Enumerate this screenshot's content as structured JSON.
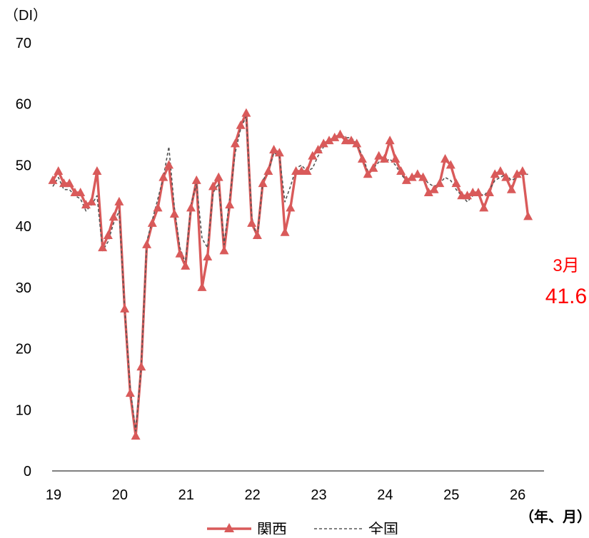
{
  "chart_data": {
    "type": "line",
    "y_unit_label": "（DI）",
    "x_unit_label": "（年、月）",
    "ylim": [
      0,
      70
    ],
    "y_ticks": [
      "0",
      "10",
      "20",
      "30",
      "40",
      "50",
      "60",
      "70"
    ],
    "x_tick_labels": [
      "19",
      "20",
      "21",
      "22",
      "23",
      "24",
      "25",
      "26"
    ],
    "grid": false,
    "legend_position": "bottom",
    "series": [
      {
        "name": "関西",
        "style": "solid-with-triangle-markers",
        "color": "#d95a5a",
        "values": [
          47.5,
          49.0,
          47.0,
          47.0,
          45.5,
          45.5,
          43.5,
          44.0,
          49.0,
          36.5,
          38.5,
          41.5,
          44.0,
          26.5,
          12.7,
          5.7,
          17.0,
          37.0,
          40.5,
          43.0,
          48.0,
          50.0,
          42.0,
          35.5,
          33.5,
          43.0,
          47.5,
          30.0,
          35.0,
          46.5,
          48.0,
          36.0,
          43.5,
          53.5,
          56.5,
          58.5,
          40.5,
          38.5,
          47.0,
          49.0,
          52.5,
          52.0,
          39.0,
          43.0,
          49.0,
          49.0,
          49.0,
          51.5,
          52.5,
          53.5,
          54.0,
          54.5,
          55.0,
          54.0,
          54.0,
          53.5,
          51.0,
          48.5,
          49.5,
          51.5,
          51.0,
          54.0,
          51.0,
          49.0,
          47.5,
          48.0,
          48.5,
          48.0,
          45.5,
          46.0,
          47.0,
          51.0,
          50.0,
          47.0,
          45.0,
          45.0,
          45.5,
          45.5,
          43.0,
          45.5,
          48.5,
          49.0,
          48.0,
          46.0,
          48.5,
          49.0,
          41.6
        ]
      },
      {
        "name": "全国",
        "style": "dashed",
        "color": "#555555",
        "values": [
          46.5,
          48.0,
          46.0,
          46.0,
          45.0,
          44.5,
          42.5,
          43.5,
          45.0,
          36.0,
          37.5,
          40.5,
          42.5,
          26.5,
          13.5,
          6.5,
          17.0,
          37.5,
          41.0,
          44.5,
          48.0,
          53.0,
          43.0,
          36.5,
          34.0,
          43.5,
          47.0,
          38.0,
          36.5,
          45.5,
          47.0,
          37.0,
          44.5,
          52.0,
          56.0,
          58.0,
          41.5,
          38.0,
          47.5,
          49.0,
          52.0,
          51.5,
          44.0,
          46.5,
          49.5,
          50.0,
          49.0,
          49.5,
          51.5,
          53.0,
          54.0,
          54.5,
          55.0,
          54.5,
          54.5,
          53.5,
          51.5,
          49.0,
          49.5,
          50.5,
          50.5,
          51.0,
          50.0,
          48.5,
          47.5,
          48.0,
          48.5,
          48.0,
          47.0,
          46.5,
          47.0,
          48.0,
          47.5,
          46.0,
          45.0,
          44.0,
          45.0,
          45.5,
          45.0,
          46.0,
          47.5,
          48.0,
          48.5,
          47.5,
          48.0,
          48.5,
          48.5
        ]
      }
    ],
    "annotation": {
      "month": "3月",
      "value": "41.6",
      "color": "#ff0000"
    }
  }
}
